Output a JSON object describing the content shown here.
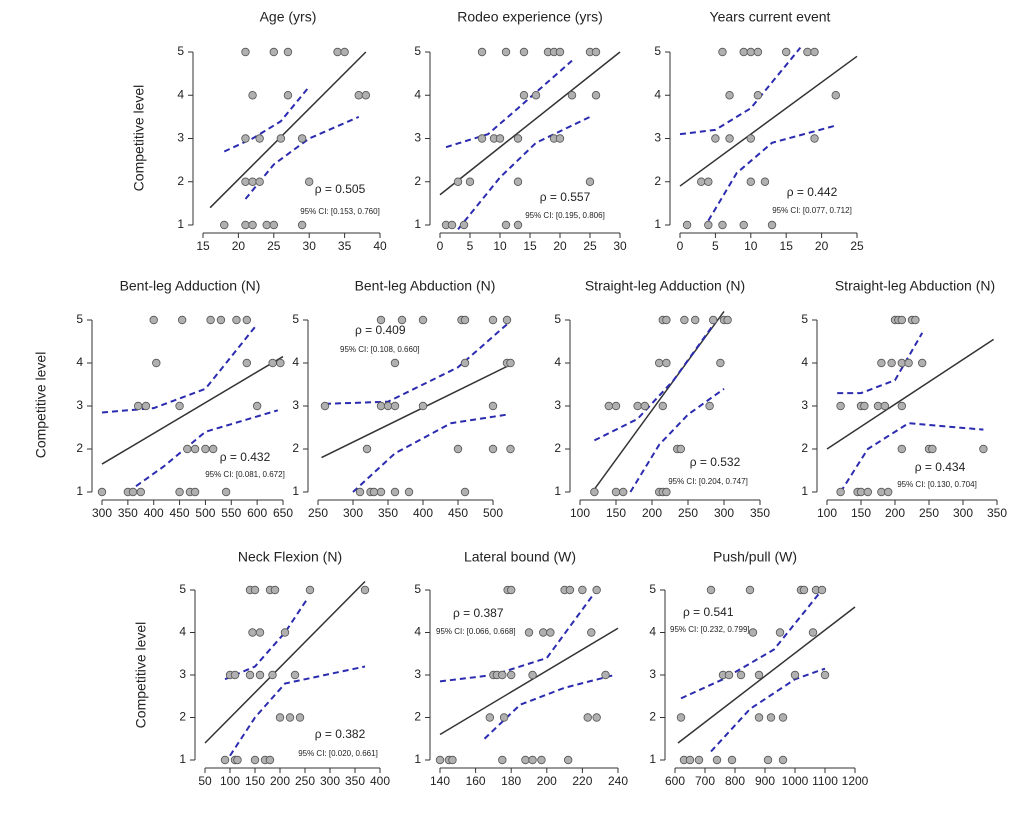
{
  "chart_data": [
    {
      "type": "scatter",
      "title": "Age (yrs)",
      "ylabel": "Competitive level",
      "x": [
        21,
        25,
        27,
        34,
        35,
        22,
        27,
        37,
        38,
        21,
        23,
        26,
        29,
        21,
        22,
        23,
        30,
        18,
        21,
        22,
        24,
        25,
        29
      ],
      "y": [
        5,
        5,
        5,
        5,
        5,
        4,
        4,
        4,
        4,
        3,
        3,
        3,
        3,
        2,
        2,
        2,
        2,
        1,
        1,
        1,
        1,
        1,
        1
      ],
      "fit": {
        "x": [
          16,
          38
        ],
        "y": [
          1.4,
          5
        ]
      },
      "ci_upper": {
        "x": [
          18,
          22,
          26,
          30
        ],
        "y": [
          2.7,
          3.0,
          3.4,
          4.2
        ]
      },
      "ci_lower": {
        "x": [
          21,
          25,
          30,
          37
        ],
        "y": [
          1.6,
          2.4,
          3.0,
          3.5
        ]
      },
      "annotations": [
        "ρ = 0.505",
        "95% CI: [0.153, 0.760]"
      ],
      "xlim": [
        15,
        40
      ],
      "xticks": [
        15,
        20,
        25,
        30,
        35,
        40
      ],
      "ylim": [
        1,
        5
      ],
      "yticks": [
        1,
        2,
        3,
        4,
        5
      ],
      "point_color": "#b0b0b0",
      "fit_color": "#333333",
      "ci_color": "#2b2bb0"
    },
    {
      "type": "scatter",
      "title": "Rodeo experience (yrs)",
      "x": [
        7,
        11,
        14,
        18,
        19,
        20,
        25,
        26,
        14,
        16,
        22,
        26,
        7,
        9,
        10,
        13,
        19,
        20,
        3,
        5,
        13,
        25,
        1,
        2,
        4,
        11,
        13
      ],
      "y": [
        5,
        5,
        5,
        5,
        5,
        5,
        5,
        5,
        4,
        4,
        4,
        4,
        3,
        3,
        3,
        3,
        3,
        3,
        2,
        2,
        2,
        2,
        1,
        1,
        1,
        1,
        1
      ],
      "fit": {
        "x": [
          0,
          30
        ],
        "y": [
          1.7,
          5
        ]
      },
      "ci_upper": {
        "x": [
          1,
          8,
          13,
          22
        ],
        "y": [
          2.8,
          3.1,
          3.7,
          4.8
        ]
      },
      "ci_lower": {
        "x": [
          3,
          10,
          16,
          25
        ],
        "y": [
          0.9,
          2.1,
          2.9,
          3.5
        ]
      },
      "annotations": [
        "ρ = 0.557",
        "95% CI: [0.195, 0.806]"
      ],
      "xlim": [
        0,
        30
      ],
      "xticks": [
        0,
        5,
        10,
        15,
        20,
        25,
        30
      ],
      "ylim": [
        1,
        5
      ],
      "yticks": [
        1,
        2,
        3,
        4,
        5
      ],
      "point_color": "#b0b0b0",
      "fit_color": "#333333",
      "ci_color": "#2b2bb0"
    },
    {
      "type": "scatter",
      "title": "Years current event",
      "x": [
        6,
        9,
        10,
        11,
        15,
        18,
        19,
        7,
        11,
        22,
        5,
        7,
        10,
        19,
        3,
        4,
        10,
        12,
        1,
        4,
        6,
        9,
        13
      ],
      "y": [
        5,
        5,
        5,
        5,
        5,
        5,
        5,
        4,
        4,
        4,
        3,
        3,
        3,
        3,
        2,
        2,
        2,
        2,
        1,
        1,
        1,
        1,
        1
      ],
      "fit": {
        "x": [
          0,
          25
        ],
        "y": [
          1.9,
          4.9
        ]
      },
      "ci_upper": {
        "x": [
          0,
          5,
          10,
          17
        ],
        "y": [
          3.1,
          3.2,
          3.7,
          5.1
        ]
      },
      "ci_lower": {
        "x": [
          4,
          8,
          13,
          22
        ],
        "y": [
          1.1,
          2.2,
          2.9,
          3.3
        ]
      },
      "annotations": [
        "ρ = 0.442",
        "95% CI: [0.077, 0.712]"
      ],
      "xlim": [
        0,
        25
      ],
      "xticks": [
        0,
        5,
        10,
        15,
        20,
        25
      ],
      "ylim": [
        1,
        5
      ],
      "yticks": [
        1,
        2,
        3,
        4,
        5
      ],
      "point_color": "#b0b0b0",
      "fit_color": "#333333",
      "ci_color": "#2b2bb0"
    },
    {
      "type": "scatter",
      "title": "Bent-leg Adduction (N)",
      "ylabel": "Competitive level",
      "x": [
        400,
        455,
        510,
        530,
        560,
        580,
        405,
        580,
        630,
        645,
        370,
        385,
        450,
        600,
        465,
        480,
        500,
        515,
        300,
        350,
        360,
        375,
        450,
        470,
        480,
        540
      ],
      "y": [
        5,
        5,
        5,
        5,
        5,
        5,
        4,
        4,
        4,
        4,
        3,
        3,
        3,
        3,
        2,
        2,
        2,
        2,
        1,
        1,
        1,
        1,
        1,
        1,
        1,
        1
      ],
      "fit": {
        "x": [
          300,
          650
        ],
        "y": [
          1.65,
          4.15
        ]
      },
      "ci_upper": {
        "x": [
          300,
          400,
          500,
          600
        ],
        "y": [
          2.85,
          2.95,
          3.4,
          4.9
        ]
      },
      "ci_lower": {
        "x": [
          350,
          420,
          500,
          640
        ],
        "y": [
          1.0,
          1.6,
          2.4,
          2.9
        ]
      },
      "annotations": [
        "ρ = 0.432",
        "95% CI: [0.081, 0.672]"
      ],
      "xlim": [
        300,
        650
      ],
      "xticks": [
        300,
        350,
        400,
        450,
        500,
        550,
        600,
        650
      ],
      "ylim": [
        1,
        5
      ],
      "yticks": [
        1,
        2,
        3,
        4,
        5
      ],
      "point_color": "#b0b0b0",
      "fit_color": "#333333",
      "ci_color": "#2b2bb0"
    },
    {
      "type": "scatter",
      "title": "Bent-leg Abduction (N)",
      "x": [
        340,
        370,
        400,
        455,
        460,
        500,
        520,
        360,
        460,
        520,
        525,
        260,
        340,
        350,
        360,
        400,
        500,
        320,
        450,
        500,
        525,
        310,
        325,
        330,
        340,
        360,
        380,
        460
      ],
      "y": [
        5,
        5,
        5,
        5,
        5,
        5,
        5,
        4,
        4,
        4,
        4,
        3,
        3,
        3,
        3,
        3,
        3,
        2,
        2,
        2,
        2,
        1,
        1,
        1,
        1,
        1,
        1,
        1
      ],
      "fit": {
        "x": [
          255,
          530
        ],
        "y": [
          1.8,
          4.0
        ]
      },
      "ci_upper": {
        "x": [
          260,
          350,
          450,
          520
        ],
        "y": [
          3.05,
          3.1,
          3.9,
          4.9
        ]
      },
      "ci_lower": {
        "x": [
          300,
          360,
          440,
          520
        ],
        "y": [
          1.0,
          1.9,
          2.6,
          2.8
        ]
      },
      "annotations": [
        "ρ = 0.409",
        "95% CI: [0.108, 0.660]"
      ],
      "xlim": [
        250,
        530
      ],
      "xticks": [
        250,
        300,
        350,
        400,
        450,
        500
      ],
      "ylim": [
        1,
        5
      ],
      "yticks": [
        1,
        2,
        3,
        4,
        5
      ],
      "point_color": "#b0b0b0",
      "fit_color": "#333333",
      "ci_color": "#2b2bb0"
    },
    {
      "type": "scatter",
      "title": "Straight-leg Adduction (N)",
      "x": [
        215,
        220,
        245,
        260,
        285,
        300,
        305,
        210,
        220,
        295,
        140,
        150,
        180,
        190,
        215,
        280,
        235,
        240,
        120,
        150,
        160,
        210,
        215,
        220
      ],
      "y": [
        5,
        5,
        5,
        5,
        5,
        5,
        5,
        4,
        4,
        4,
        3,
        3,
        3,
        3,
        3,
        3,
        2,
        2,
        1,
        1,
        1,
        1,
        1,
        1
      ],
      "fit": {
        "x": [
          115,
          300
        ],
        "y": [
          0.95,
          5.2
        ]
      },
      "ci_upper": {
        "x": [
          120,
          180,
          230,
          290
        ],
        "y": [
          2.2,
          2.7,
          3.6,
          5.0
        ]
      },
      "ci_lower": {
        "x": [
          170,
          210,
          250,
          300
        ],
        "y": [
          1.0,
          2.1,
          2.8,
          3.4
        ]
      },
      "annotations": [
        "ρ = 0.532",
        "95% CI: [0.204, 0.747]"
      ],
      "xlim": [
        100,
        350
      ],
      "xticks": [
        100,
        150,
        200,
        250,
        300,
        350
      ],
      "ylim": [
        1,
        5
      ],
      "yticks": [
        1,
        2,
        3,
        4,
        5
      ],
      "point_color": "#b0b0b0",
      "fit_color": "#333333",
      "ci_color": "#2b2bb0"
    },
    {
      "type": "scatter",
      "title": "Straight-leg Abduction (N)",
      "x": [
        200,
        205,
        210,
        225,
        230,
        180,
        195,
        210,
        220,
        240,
        120,
        150,
        155,
        175,
        185,
        210,
        210,
        250,
        255,
        330,
        120,
        145,
        150,
        160,
        180,
        190
      ],
      "y": [
        5,
        5,
        5,
        5,
        5,
        4,
        4,
        4,
        4,
        4,
        3,
        3,
        3,
        3,
        3,
        3,
        2,
        2,
        2,
        2,
        1,
        1,
        1,
        1,
        1,
        1
      ],
      "fit": {
        "x": [
          100,
          345
        ],
        "y": [
          2.0,
          4.55
        ]
      },
      "ci_upper": {
        "x": [
          115,
          150,
          200,
          240
        ],
        "y": [
          3.3,
          3.3,
          3.6,
          4.7
        ]
      },
      "ci_lower": {
        "x": [
          120,
          160,
          220,
          330
        ],
        "y": [
          1.0,
          2.0,
          2.6,
          2.45
        ]
      },
      "annotations": [
        "ρ = 0.434",
        "95% CI: [0.130, 0.704]"
      ],
      "xlim": [
        100,
        350
      ],
      "xticks": [
        100,
        150,
        200,
        250,
        300,
        350
      ],
      "ylim": [
        1,
        5
      ],
      "yticks": [
        1,
        2,
        3,
        4,
        5
      ],
      "point_color": "#b0b0b0",
      "fit_color": "#333333",
      "ci_color": "#2b2bb0"
    },
    {
      "type": "scatter",
      "title": "Neck Flexion (N)",
      "ylabel": "Competitive level",
      "x": [
        140,
        150,
        180,
        190,
        260,
        370,
        145,
        160,
        210,
        100,
        110,
        140,
        160,
        185,
        230,
        200,
        220,
        240,
        90,
        110,
        115,
        150,
        170,
        180
      ],
      "y": [
        5,
        5,
        5,
        5,
        5,
        5,
        4,
        4,
        4,
        3,
        3,
        3,
        3,
        3,
        3,
        2,
        2,
        2,
        1,
        1,
        1,
        1,
        1,
        1
      ],
      "fit": {
        "x": [
          50,
          370
        ],
        "y": [
          1.4,
          5.2
        ]
      },
      "ci_upper": {
        "x": [
          90,
          150,
          210,
          255
        ],
        "y": [
          2.9,
          3.2,
          4.0,
          4.8
        ]
      },
      "ci_lower": {
        "x": [
          100,
          150,
          210,
          370
        ],
        "y": [
          1.1,
          2.0,
          2.8,
          3.2
        ]
      },
      "annotations": [
        "ρ = 0.382",
        "95% CI: [0.020, 0.661]"
      ],
      "xlim": [
        50,
        400
      ],
      "xticks": [
        50,
        100,
        150,
        200,
        250,
        300,
        350,
        400
      ],
      "ylim": [
        1,
        5
      ],
      "yticks": [
        1,
        2,
        3,
        4,
        5
      ],
      "point_color": "#b0b0b0",
      "fit_color": "#333333",
      "ci_color": "#2b2bb0"
    },
    {
      "type": "scatter",
      "title": "Lateral bound (W)",
      "x": [
        178,
        180,
        210,
        213,
        220,
        228,
        190,
        198,
        202,
        225,
        170,
        172,
        175,
        180,
        192,
        233,
        168,
        176,
        223,
        228,
        140,
        145,
        147,
        175,
        188,
        192,
        197,
        212
      ],
      "y": [
        5,
        5,
        5,
        5,
        5,
        5,
        4,
        4,
        4,
        4,
        3,
        3,
        3,
        3,
        3,
        3,
        2,
        2,
        2,
        2,
        1,
        1,
        1,
        1,
        1,
        1,
        1,
        1
      ],
      "fit": {
        "x": [
          140,
          240
        ],
        "y": [
          1.6,
          4.1
        ]
      },
      "ci_upper": {
        "x": [
          140,
          170,
          200,
          228
        ],
        "y": [
          2.85,
          3.0,
          3.4,
          5.0
        ]
      },
      "ci_lower": {
        "x": [
          165,
          185,
          210,
          238
        ],
        "y": [
          1.5,
          2.3,
          2.7,
          3.0
        ]
      },
      "annotations": [
        "ρ = 0.387",
        "95% CI: [0.066, 0.668]"
      ],
      "xlim": [
        140,
        240
      ],
      "xticks": [
        140,
        160,
        180,
        200,
        220,
        240
      ],
      "ylim": [
        1,
        5
      ],
      "yticks": [
        1,
        2,
        3,
        4,
        5
      ],
      "point_color": "#b0b0b0",
      "fit_color": "#333333",
      "ci_color": "#2b2bb0"
    },
    {
      "type": "scatter",
      "title": "Push/pull (W)",
      "x": [
        720,
        850,
        1020,
        1030,
        1070,
        1090,
        860,
        950,
        1060,
        760,
        780,
        820,
        880,
        1000,
        1100,
        880,
        920,
        960,
        620,
        630,
        650,
        680,
        740,
        790,
        910,
        960
      ],
      "y": [
        5,
        5,
        5,
        5,
        5,
        5,
        4,
        4,
        4,
        3,
        3,
        3,
        3,
        3,
        3,
        2,
        2,
        2,
        2,
        1,
        1,
        1,
        1,
        1,
        1,
        1
      ],
      "fit": {
        "x": [
          610,
          1200
        ],
        "y": [
          1.4,
          4.6
        ]
      },
      "ci_upper": {
        "x": [
          620,
          760,
          930,
          1090
        ],
        "y": [
          2.45,
          2.9,
          3.6,
          5.0
        ]
      },
      "ci_lower": {
        "x": [
          720,
          850,
          1000,
          1100
        ],
        "y": [
          1.2,
          2.2,
          2.9,
          3.15
        ]
      },
      "annotations": [
        "ρ = 0.541",
        "95% CI: [0.232, 0.799]"
      ],
      "xlim": [
        600,
        1200
      ],
      "xticks": [
        600,
        700,
        800,
        900,
        1000,
        1100,
        1200
      ],
      "ylim": [
        1,
        5
      ],
      "yticks": [
        1,
        2,
        3,
        4,
        5
      ],
      "point_color": "#b0b0b0",
      "fit_color": "#333333",
      "ci_color": "#2b2bb0"
    }
  ]
}
